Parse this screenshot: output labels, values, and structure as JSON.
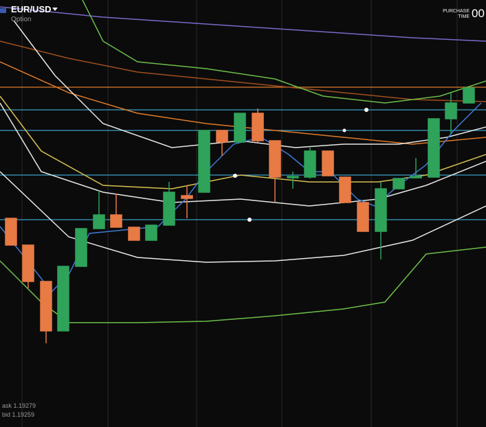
{
  "header": {
    "pair": "EUR/USD",
    "mode": "Option"
  },
  "purchase_time": {
    "label_line1": "PURCHASE",
    "label_line2": "TIME",
    "value": "00"
  },
  "quotes": {
    "ask": "ask 1.19279",
    "bid": "bid 1.19259"
  }
}
